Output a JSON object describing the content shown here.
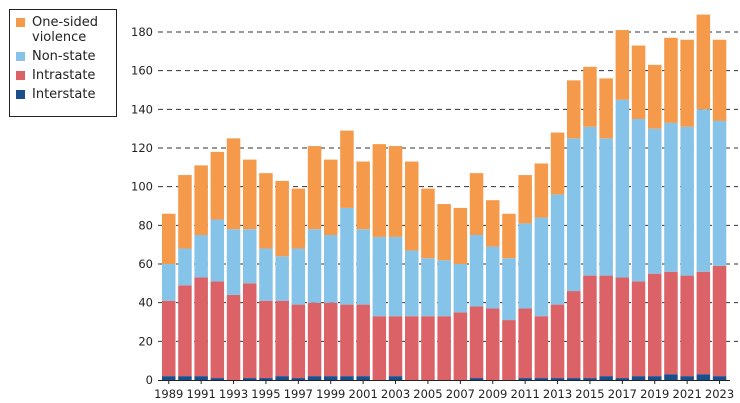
{
  "chart_data": {
    "type": "bar",
    "stacked": true,
    "title": "",
    "xlabel": "",
    "ylabel": "",
    "ylim": [
      0,
      190
    ],
    "yticks": [
      0,
      20,
      40,
      60,
      80,
      100,
      120,
      140,
      160,
      180
    ],
    "grid": "horizontal dashed",
    "legend_position": "top-left",
    "categories": [
      "1989",
      "1990",
      "1991",
      "1992",
      "1993",
      "1994",
      "1995",
      "1996",
      "1997",
      "1998",
      "1999",
      "2000",
      "2001",
      "2002",
      "2003",
      "2004",
      "2005",
      "2006",
      "2007",
      "2008",
      "2009",
      "2010",
      "2011",
      "2012",
      "2013",
      "2014",
      "2015",
      "2016",
      "2017",
      "2018",
      "2019",
      "2020",
      "2021",
      "2022",
      "2023"
    ],
    "xtick_labels": [
      "1989",
      "1991",
      "1993",
      "1995",
      "1997",
      "1999",
      "2001",
      "2003",
      "2005",
      "2007",
      "2009",
      "2011",
      "2013",
      "2015",
      "2017",
      "2019",
      "2021",
      "2023"
    ],
    "series": [
      {
        "name": "Interstate",
        "color": "#1B4F8C",
        "values": [
          2,
          2,
          2,
          1,
          0,
          1,
          1,
          2,
          1,
          2,
          2,
          2,
          2,
          0,
          2,
          0,
          0,
          0,
          0,
          1,
          0,
          0,
          1,
          1,
          1,
          1,
          1,
          2,
          1,
          2,
          2,
          3,
          2,
          3,
          2
        ]
      },
      {
        "name": "Intrastate",
        "color": "#DB6267",
        "values": [
          39,
          47,
          51,
          50,
          44,
          49,
          40,
          39,
          38,
          38,
          38,
          37,
          37,
          33,
          31,
          33,
          33,
          33,
          35,
          37,
          37,
          31,
          36,
          32,
          38,
          45,
          53,
          52,
          52,
          49,
          53,
          53,
          52,
          53,
          57
        ]
      },
      {
        "name": "Non-state",
        "color": "#86C3E8",
        "values": [
          19,
          19,
          22,
          32,
          34,
          28,
          27,
          23,
          29,
          38,
          35,
          50,
          39,
          41,
          41,
          34,
          30,
          29,
          25,
          37,
          32,
          32,
          44,
          51,
          57,
          79,
          77,
          71,
          92,
          84,
          75,
          77,
          77,
          84,
          75
        ]
      },
      {
        "name": "One-sided violence",
        "color": "#F49A4A",
        "values": [
          26,
          38,
          36,
          35,
          47,
          36,
          39,
          39,
          31,
          43,
          39,
          40,
          35,
          48,
          47,
          46,
          36,
          29,
          29,
          32,
          24,
          23,
          25,
          28,
          32,
          30,
          31,
          31,
          36,
          38,
          33,
          44,
          45,
          49,
          42
        ]
      }
    ]
  },
  "legend": {
    "items": [
      {
        "label": "One-sided violence",
        "color": "#F49A4A"
      },
      {
        "label": "Non-state",
        "color": "#86C3E8"
      },
      {
        "label": "Intrastate",
        "color": "#DB6267"
      },
      {
        "label": "Interstate",
        "color": "#1B4F8C"
      }
    ]
  }
}
